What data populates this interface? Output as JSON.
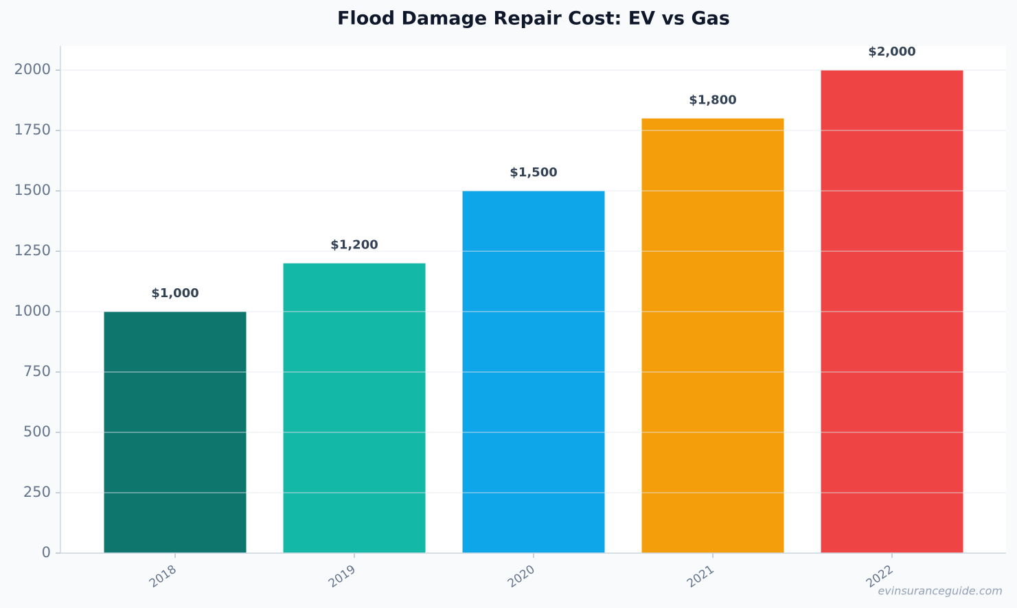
{
  "chart_data": {
    "type": "bar",
    "title": "Flood Damage Repair Cost: EV vs Gas",
    "categories": [
      "2018",
      "2019",
      "2020",
      "2021",
      "2022"
    ],
    "values": [
      1000,
      1200,
      1500,
      1800,
      2000
    ],
    "value_labels": [
      "$1,000",
      "$1,200",
      "$1,500",
      "$1,800",
      "$2,000"
    ],
    "colors": [
      "#0f766e",
      "#14b8a6",
      "#0ea5e9",
      "#f59e0b",
      "#ef4444"
    ],
    "ylim": [
      0,
      2100
    ],
    "yticks": [
      0,
      250,
      500,
      750,
      1000,
      1250,
      1500,
      1750,
      2000
    ],
    "grid": true,
    "watermark": "evinsuranceguide.com"
  }
}
